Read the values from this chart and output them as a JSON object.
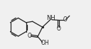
{
  "bg_color": "#f0f0f0",
  "line_color": "#222222",
  "line_width": 0.9,
  "font_size": 5.5,
  "bond_color": "#222222",
  "xlim": [
    0.0,
    10.5
  ],
  "ylim": [
    1.8,
    6.2
  ]
}
